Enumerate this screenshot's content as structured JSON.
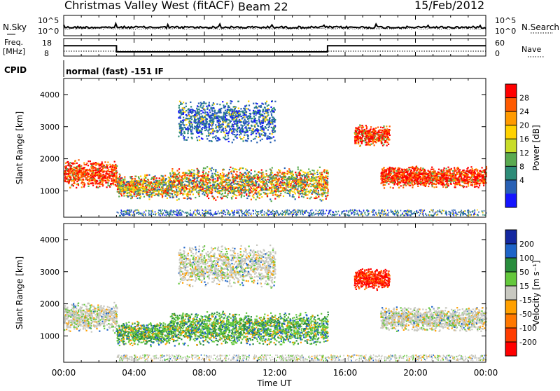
{
  "header": {
    "station": "Christmas Valley West (fitACF)",
    "beam": "Beam 22",
    "date": "15/Feb/2012"
  },
  "noise_panel": {
    "left_label": "N.Sky",
    "right_label": "N.Search",
    "left_ticks": [
      "10^5",
      "10^0"
    ],
    "right_ticks": [
      "10^5",
      "10^0"
    ]
  },
  "freq_panel": {
    "left_label_1": "Freq.",
    "left_label_2": "[MHz]",
    "left_ticks": [
      "18",
      "8"
    ],
    "right_label": "Nave",
    "right_ticks": [
      "60",
      "0"
    ],
    "segments": [
      {
        "from_hour": 0,
        "to_hour": 3,
        "freq_mhz": 16
      },
      {
        "from_hour": 3,
        "to_hour": 15,
        "freq_mhz": 10.5
      },
      {
        "from_hour": 15,
        "to_hour": 24,
        "freq_mhz": 16
      }
    ]
  },
  "cpid_panel": {
    "label": "CPID",
    "mode_text": "normal (fast) -151 IF"
  },
  "chart_data": [
    {
      "type": "heatmap",
      "name": "power",
      "ylabel": "Slant Range [km]",
      "yticks": [
        "4000",
        "3000",
        "2000",
        "1000"
      ],
      "ylim": [
        180,
        4500
      ],
      "colorbar_label": "Power [dB]",
      "colorbar_ticks": [
        "28",
        "24",
        "20",
        "16",
        "12",
        "8",
        "4"
      ],
      "colorbar_colors": [
        "#ff0000",
        "#ff5a00",
        "#ff9a00",
        "#ffd200",
        "#c8dc28",
        "#5aaa50",
        "#2d8c78",
        "#2860b4",
        "#1414ff"
      ],
      "bands": [
        {
          "from_hour": 0,
          "to_hour": 3,
          "range_center_km": 1550,
          "range_width_km": 450,
          "level": "strong"
        },
        {
          "from_hour": 3,
          "to_hour": 6,
          "range_center_km": 1150,
          "range_width_km": 400,
          "level": "medium"
        },
        {
          "from_hour": 6,
          "to_hour": 15,
          "range_center_km": 1250,
          "range_width_km": 550,
          "level": "medium"
        },
        {
          "from_hour": 18,
          "to_hour": 24,
          "range_center_km": 1450,
          "range_width_km": 350,
          "level": "strong"
        },
        {
          "from_hour": 6.5,
          "to_hour": 12,
          "range_center_km": 3200,
          "range_width_km": 700,
          "level": "weak"
        },
        {
          "from_hour": 16.5,
          "to_hour": 18.5,
          "range_center_km": 2750,
          "range_width_km": 350,
          "level": "strong"
        }
      ]
    },
    {
      "type": "heatmap",
      "name": "velocity",
      "ylabel": "Slant Range [km]",
      "yticks": [
        "4000",
        "3000",
        "2000",
        "1000"
      ],
      "ylim": [
        180,
        4500
      ],
      "xlabel": "Time UT",
      "xticks": [
        "00:00",
        "04:00",
        "08:00",
        "12:00",
        "16:00",
        "20:00",
        "00:00"
      ],
      "xlim_hours": [
        0,
        24
      ],
      "colorbar_label": "Velocity [m s⁻¹]",
      "colorbar_ticks": [
        "200",
        "100",
        "50",
        "15",
        "-15",
        "-50",
        "-100",
        "-200"
      ],
      "colorbar_colors": [
        "#1428a0",
        "#1e64c8",
        "#288c3c",
        "#64c83c",
        "#c8c8c0",
        "#ffa000",
        "#ff7800",
        "#ff3c00",
        "#ff0000"
      ],
      "bands": [
        {
          "from_hour": 0,
          "to_hour": 3,
          "range_center_km": 1600,
          "range_width_km": 500,
          "velocity": 0
        },
        {
          "from_hour": 3,
          "to_hour": 6,
          "range_center_km": 1100,
          "range_width_km": 400,
          "velocity": 60
        },
        {
          "from_hour": 6,
          "to_hour": 15,
          "range_center_km": 1250,
          "range_width_km": 550,
          "velocity": 70
        },
        {
          "from_hour": 18,
          "to_hour": 24,
          "range_center_km": 1550,
          "range_width_km": 400,
          "velocity": 0
        },
        {
          "from_hour": 6.5,
          "to_hour": 12,
          "range_center_km": 3200,
          "range_width_km": 700,
          "velocity": 0
        },
        {
          "from_hour": 16.5,
          "to_hour": 18.5,
          "range_center_km": 2800,
          "range_width_km": 350,
          "velocity": -200
        }
      ]
    }
  ]
}
